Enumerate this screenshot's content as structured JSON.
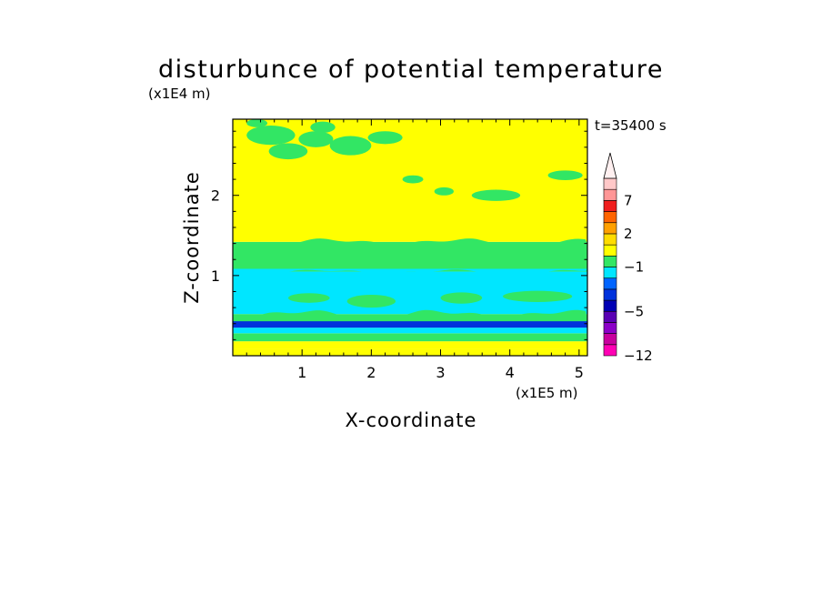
{
  "chart_data": {
    "type": "heatmap",
    "title": "disturbunce of potential temperature",
    "time_label": "t=35400 s",
    "xlabel": "X-coordinate",
    "ylabel": "Z-coordinate",
    "x_scale_label": "(x1E5 m)",
    "y_scale_label": "(x1E4 m)",
    "x_range": [
      0,
      5.12
    ],
    "y_range": [
      0,
      2.95
    ],
    "x_ticks": [
      "1",
      "2",
      "3",
      "4",
      "5"
    ],
    "y_ticks": [
      "1",
      "2"
    ],
    "x_tick_values": [
      1,
      2,
      3,
      4,
      5
    ],
    "y_tick_values": [
      1,
      2
    ],
    "colorbar": {
      "labels": [
        "7",
        "2",
        "−1",
        "−5",
        "−12"
      ],
      "label_levels": [
        7,
        2,
        -1,
        -5,
        -12
      ],
      "levels": [
        -12,
        -10,
        -8,
        -6,
        -5,
        -4,
        -3,
        -2,
        -1,
        0,
        1,
        2,
        3,
        5,
        7,
        9,
        11
      ],
      "colors": [
        "#ff00b4",
        "#c8009e",
        "#8c00c8",
        "#5a00b4",
        "#0000b4",
        "#0032dc",
        "#0064ff",
        "#00e6ff",
        "#32e664",
        "#ffff00",
        "#ffdc00",
        "#ffa000",
        "#ff6400",
        "#f01e1e",
        "#ff9696",
        "#ffc8c8"
      ],
      "extend": "max"
    },
    "bands": [
      {
        "z": [
          0.0,
          0.08
        ],
        "color": "#ffff00"
      },
      {
        "z": [
          0.08,
          0.18
        ],
        "color": "#ffff00"
      },
      {
        "z": [
          0.18,
          0.28
        ],
        "color": "#32e664"
      },
      {
        "z": [
          0.28,
          0.35
        ],
        "color": "#00e6ff"
      },
      {
        "z": [
          0.35,
          0.44
        ],
        "color": "#0032dc"
      },
      {
        "z": [
          0.44,
          0.52
        ],
        "color": "#32e664"
      },
      {
        "z": [
          0.52,
          1.05
        ],
        "color": "#00e6ff"
      },
      {
        "z": [
          1.05,
          1.42
        ],
        "color": "#32e664"
      },
      {
        "z": [
          1.42,
          2.95
        ],
        "color": "#ffff00"
      }
    ]
  }
}
